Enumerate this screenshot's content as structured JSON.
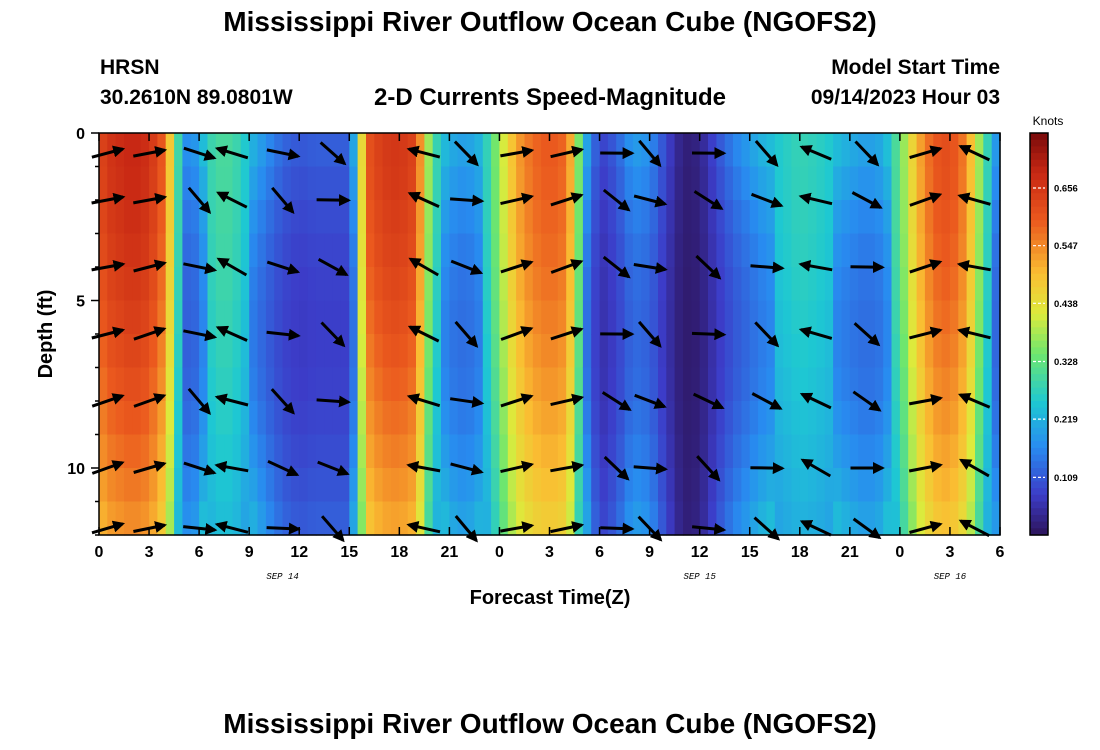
{
  "header": {
    "title": "Mississippi River Outflow Ocean Cube (NGOFS2)",
    "station": "HRSN",
    "coords": "30.2610N  89.0801W",
    "subtitle": "2-D Currents Speed-Magnitude",
    "model_start_label": "Model Start Time",
    "model_start_value": "09/14/2023 Hour 03"
  },
  "footer": {
    "title": "Mississippi River Outflow Ocean Cube (NGOFS2)"
  },
  "chart_data": {
    "type": "heatmap",
    "xlabel": "Forecast Time(Z)",
    "ylabel": "Depth (ft)",
    "x_tick_labels": [
      "0",
      "3",
      "6",
      "9",
      "12",
      "15",
      "18",
      "21",
      "0",
      "3",
      "6",
      "9",
      "12",
      "15",
      "18",
      "21",
      "0",
      "3",
      "6"
    ],
    "x_range_hours": [
      0,
      54
    ],
    "date_labels": [
      {
        "text": "SEP 14",
        "hour": 11
      },
      {
        "text": "SEP 15",
        "hour": 36
      },
      {
        "text": "SEP 16",
        "hour": 51
      }
    ],
    "y_tick_labels": [
      "0",
      "5",
      "10"
    ],
    "ylim": [
      0,
      12
    ],
    "colorbar": {
      "label": "Knots",
      "ticks": [
        "0.656",
        "0.547",
        "0.438",
        "0.328",
        "0.219",
        "0.109"
      ],
      "tick_values": [
        0.656,
        0.547,
        0.438,
        0.328,
        0.219,
        0.109
      ],
      "range": [
        0,
        0.76
      ]
    },
    "speed_profile_knots": {
      "hours": [
        0,
        0.5,
        1,
        2,
        3,
        4,
        4.5,
        5,
        5.5,
        6,
        6.5,
        7,
        8,
        9,
        10,
        11,
        12,
        13,
        14,
        15,
        15.5,
        16,
        17,
        18,
        19,
        19.5,
        20,
        21,
        22,
        23,
        24,
        25,
        26,
        27,
        28,
        28.5,
        29,
        30,
        31,
        32,
        33,
        34,
        35,
        36,
        37,
        38,
        39,
        40,
        41,
        42,
        43,
        44,
        45,
        46,
        47,
        48,
        49,
        50,
        51,
        52,
        53,
        54
      ],
      "values": [
        0.62,
        0.66,
        0.67,
        0.69,
        0.67,
        0.58,
        0.38,
        0.2,
        0.16,
        0.22,
        0.27,
        0.3,
        0.3,
        0.24,
        0.18,
        0.13,
        0.11,
        0.12,
        0.12,
        0.12,
        0.3,
        0.6,
        0.65,
        0.66,
        0.63,
        0.45,
        0.3,
        0.22,
        0.2,
        0.24,
        0.38,
        0.52,
        0.58,
        0.6,
        0.58,
        0.45,
        0.25,
        0.08,
        0.12,
        0.2,
        0.18,
        0.09,
        0.02,
        0.03,
        0.1,
        0.16,
        0.2,
        0.24,
        0.26,
        0.28,
        0.27,
        0.25,
        0.22,
        0.2,
        0.22,
        0.33,
        0.5,
        0.6,
        0.62,
        0.55,
        0.32,
        0.15
      ]
    },
    "vector_columns_hours": [
      0.5,
      3,
      6,
      8,
      11,
      14,
      19.5,
      22,
      25,
      28,
      31,
      33,
      36.5,
      40,
      43,
      46,
      49.5,
      52.5
    ]
  }
}
